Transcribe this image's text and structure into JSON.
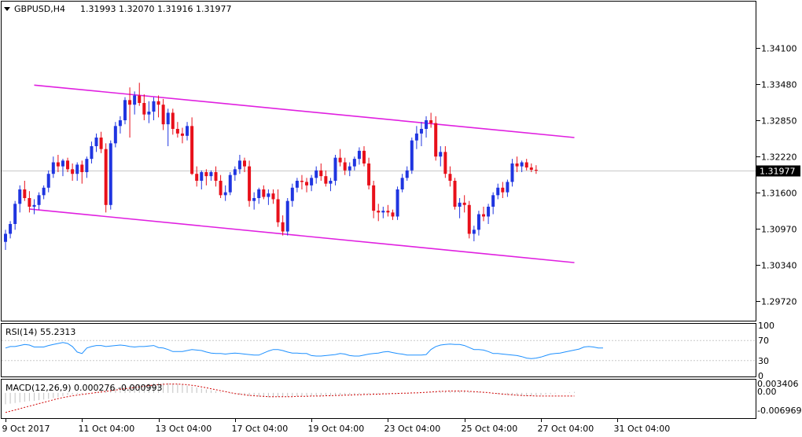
{
  "header": {
    "symbol_label": "GBPUSD,H4",
    "ohlc_label": "1.31993 1.32070 1.31916 1.31977"
  },
  "colors": {
    "bull": "#1f35e0",
    "bear": "#e8101a",
    "channel": "#e020e0",
    "rsi_line": "#1e90ff",
    "macd_hist": "#c0c0c0",
    "macd_signal": "#d00000",
    "grid": "#c8c8c8"
  },
  "chart_data": [
    {
      "type": "candlestick",
      "symbol": "GBPUSD",
      "timeframe": "H4",
      "ylim": [
        1.294,
        1.348
      ],
      "y_ticks": [
        "1.34100",
        "1.33480",
        "1.32850",
        "1.32220",
        "1.31600",
        "1.30970",
        "1.30340",
        "1.29720"
      ],
      "current_price": "1.31977",
      "x_tick_labels": [
        "9 Oct 2017",
        "11 Oct 04:00",
        "13 Oct 04:00",
        "17 Oct 04:00",
        "19 Oct 04:00",
        "23 Oct 04:00",
        "25 Oct 04:00",
        "27 Oct 04:00",
        "31 Oct 04:00"
      ],
      "x_ticks_bar_index": [
        0,
        16,
        32,
        48,
        64,
        80,
        96,
        112,
        128
      ],
      "candles": [
        [
          1.3074,
          1.3095,
          1.306,
          1.3088
        ],
        [
          1.3088,
          1.311,
          1.308,
          1.3105
        ],
        [
          1.3105,
          1.3145,
          1.3095,
          1.314
        ],
        [
          1.314,
          1.3172,
          1.3125,
          1.3165
        ],
        [
          1.3165,
          1.318,
          1.3145,
          1.315
        ],
        [
          1.315,
          1.3162,
          1.3125,
          1.3135
        ],
        [
          1.3135,
          1.3148,
          1.3122,
          1.3138
        ],
        [
          1.3138,
          1.316,
          1.313,
          1.3155
        ],
        [
          1.3155,
          1.3172,
          1.3148,
          1.3168
        ],
        [
          1.3168,
          1.3198,
          1.316,
          1.3192
        ],
        [
          1.3192,
          1.3222,
          1.3185,
          1.3212
        ],
        [
          1.3212,
          1.3225,
          1.3195,
          1.3205
        ],
        [
          1.3205,
          1.3218,
          1.3188,
          1.3215
        ],
        [
          1.3215,
          1.322,
          1.3195,
          1.32
        ],
        [
          1.32,
          1.321,
          1.318,
          1.3192
        ],
        [
          1.3192,
          1.3212,
          1.318,
          1.3208
        ],
        [
          1.3208,
          1.3215,
          1.3175,
          1.3195
        ],
        [
          1.3195,
          1.3222,
          1.3185,
          1.3218
        ],
        [
          1.3218,
          1.3248,
          1.321,
          1.324
        ],
        [
          1.324,
          1.3262,
          1.323,
          1.3255
        ],
        [
          1.3255,
          1.3265,
          1.3228,
          1.3235
        ],
        [
          1.3235,
          1.3245,
          1.3125,
          1.3138
        ],
        [
          1.3138,
          1.325,
          1.313,
          1.3245
        ],
        [
          1.3245,
          1.3282,
          1.3238,
          1.3275
        ],
        [
          1.3275,
          1.3292,
          1.3262,
          1.3285
        ],
        [
          1.3285,
          1.3325,
          1.3278,
          1.332
        ],
        [
          1.332,
          1.3342,
          1.3255,
          1.3312
        ],
        [
          1.3312,
          1.3335,
          1.3295,
          1.3328
        ],
        [
          1.3328,
          1.335,
          1.331,
          1.3315
        ],
        [
          1.3315,
          1.333,
          1.3285,
          1.3295
        ],
        [
          1.3295,
          1.3318,
          1.328,
          1.33
        ],
        [
          1.33,
          1.3325,
          1.3285,
          1.3318
        ],
        [
          1.3318,
          1.3328,
          1.329,
          1.3312
        ],
        [
          1.3312,
          1.3322,
          1.3268,
          1.3278
        ],
        [
          1.3278,
          1.3305,
          1.324,
          1.3298
        ],
        [
          1.3298,
          1.3305,
          1.326,
          1.327
        ],
        [
          1.327,
          1.3282,
          1.3255,
          1.3262
        ],
        [
          1.3262,
          1.3272,
          1.3245,
          1.3258
        ],
        [
          1.3258,
          1.3282,
          1.325,
          1.3275
        ],
        [
          1.3275,
          1.329,
          1.319,
          1.3192
        ],
        [
          1.3192,
          1.3205,
          1.317,
          1.318
        ],
        [
          1.318,
          1.3198,
          1.3165,
          1.3195
        ],
        [
          1.3195,
          1.32,
          1.3172,
          1.3188
        ],
        [
          1.3188,
          1.3198,
          1.318,
          1.3195
        ],
        [
          1.3195,
          1.3205,
          1.317,
          1.318
        ],
        [
          1.318,
          1.319,
          1.315,
          1.3155
        ],
        [
          1.3155,
          1.3172,
          1.3145,
          1.316
        ],
        [
          1.316,
          1.3195,
          1.3155,
          1.319
        ],
        [
          1.319,
          1.3205,
          1.318,
          1.32
        ],
        [
          1.32,
          1.3225,
          1.3192,
          1.3215
        ],
        [
          1.3215,
          1.322,
          1.3195,
          1.3205
        ],
        [
          1.3205,
          1.3215,
          1.3135,
          1.3145
        ],
        [
          1.3145,
          1.316,
          1.313,
          1.315
        ],
        [
          1.315,
          1.3168,
          1.314,
          1.3165
        ],
        [
          1.3165,
          1.3172,
          1.3148,
          1.3152
        ],
        [
          1.3152,
          1.3165,
          1.3138,
          1.3158
        ],
        [
          1.3158,
          1.3165,
          1.314,
          1.3148
        ],
        [
          1.3148,
          1.3165,
          1.31,
          1.3108
        ],
        [
          1.3108,
          1.312,
          1.3085,
          1.3092
        ],
        [
          1.3092,
          1.315,
          1.3085,
          1.3145
        ],
        [
          1.3145,
          1.3175,
          1.3135,
          1.3168
        ],
        [
          1.3168,
          1.3185,
          1.316,
          1.318
        ],
        [
          1.318,
          1.319,
          1.3165,
          1.3178
        ],
        [
          1.3178,
          1.3185,
          1.316,
          1.3172
        ],
        [
          1.3172,
          1.319,
          1.3162,
          1.3185
        ],
        [
          1.3185,
          1.3205,
          1.3175,
          1.3198
        ],
        [
          1.3198,
          1.321,
          1.318,
          1.3188
        ],
        [
          1.3188,
          1.3198,
          1.317,
          1.3175
        ],
        [
          1.3175,
          1.3185,
          1.3162,
          1.318
        ],
        [
          1.318,
          1.3225,
          1.3172,
          1.322
        ],
        [
          1.322,
          1.3235,
          1.3205,
          1.3212
        ],
        [
          1.3212,
          1.322,
          1.319,
          1.3198
        ],
        [
          1.3198,
          1.3212,
          1.3188,
          1.3205
        ],
        [
          1.3205,
          1.3222,
          1.3198,
          1.3218
        ],
        [
          1.3218,
          1.3238,
          1.3208,
          1.3232
        ],
        [
          1.3232,
          1.324,
          1.3205,
          1.321
        ],
        [
          1.321,
          1.322,
          1.3165,
          1.3172
        ],
        [
          1.3172,
          1.318,
          1.3115,
          1.3128
        ],
        [
          1.3128,
          1.314,
          1.311,
          1.3125
        ],
        [
          1.3125,
          1.3135,
          1.3115,
          1.3128
        ],
        [
          1.3128,
          1.3138,
          1.3118,
          1.3125
        ],
        [
          1.3125,
          1.313,
          1.3112,
          1.3118
        ],
        [
          1.3118,
          1.317,
          1.3112,
          1.3165
        ],
        [
          1.3165,
          1.3192,
          1.316,
          1.3185
        ],
        [
          1.3185,
          1.3205,
          1.318,
          1.3198
        ],
        [
          1.3198,
          1.3255,
          1.3192,
          1.325
        ],
        [
          1.325,
          1.3275,
          1.3235,
          1.3262
        ],
        [
          1.3262,
          1.3282,
          1.324,
          1.327
        ],
        [
          1.327,
          1.3292,
          1.3255,
          1.3285
        ],
        [
          1.3285,
          1.3298,
          1.3272,
          1.328
        ],
        [
          1.328,
          1.3292,
          1.3215,
          1.3222
        ],
        [
          1.3222,
          1.324,
          1.3205,
          1.323
        ],
        [
          1.323,
          1.324,
          1.3185,
          1.3192
        ],
        [
          1.3192,
          1.3205,
          1.317,
          1.318
        ],
        [
          1.318,
          1.3185,
          1.313,
          1.3135
        ],
        [
          1.3135,
          1.315,
          1.3115,
          1.3142
        ],
        [
          1.3142,
          1.3155,
          1.3125,
          1.3138
        ],
        [
          1.3138,
          1.3145,
          1.308,
          1.3088
        ],
        [
          1.3088,
          1.3102,
          1.3075,
          1.3095
        ],
        [
          1.3095,
          1.3128,
          1.3085,
          1.3122
        ],
        [
          1.3122,
          1.3135,
          1.311,
          1.3118
        ],
        [
          1.3118,
          1.314,
          1.3105,
          1.3135
        ],
        [
          1.3135,
          1.316,
          1.3122,
          1.3155
        ],
        [
          1.3155,
          1.3175,
          1.3148,
          1.3168
        ],
        [
          1.3168,
          1.3178,
          1.315,
          1.316
        ],
        [
          1.316,
          1.3182,
          1.3152,
          1.3178
        ],
        [
          1.3178,
          1.3218,
          1.317,
          1.321
        ],
        [
          1.321,
          1.3222,
          1.3195,
          1.3205
        ],
        [
          1.3205,
          1.3215,
          1.3195,
          1.3212
        ],
        [
          1.3212,
          1.3218,
          1.3198,
          1.3203
        ],
        [
          1.3203,
          1.321,
          1.3195,
          1.3199
        ],
        [
          1.3199,
          1.3207,
          1.3192,
          1.3198
        ]
      ],
      "channel_lines": [
        {
          "name": "upper",
          "from_bar": 6,
          "to_bar": 119,
          "from_price": 1.3346,
          "to_price": 1.3255
        },
        {
          "name": "lower",
          "from_bar": 5,
          "to_bar": 119,
          "from_price": 1.3131,
          "to_price": 1.3038
        }
      ]
    },
    {
      "type": "line",
      "indicator_label": "RSI(14) 55.2313",
      "ylim": [
        0,
        100
      ],
      "y_ticks": [
        "100",
        "70",
        "30",
        "0"
      ],
      "levels": [
        70,
        30
      ],
      "values": [
        55,
        58,
        58,
        60,
        62,
        61,
        57,
        57,
        57,
        60,
        62,
        64,
        66,
        64,
        58,
        47,
        44,
        55,
        58,
        60,
        60,
        58,
        59,
        60,
        61,
        60,
        58,
        57,
        58,
        58,
        59,
        60,
        56,
        55,
        52,
        48,
        48,
        48,
        50,
        52,
        51,
        50,
        47,
        45,
        44,
        44,
        43,
        44,
        45,
        44,
        43,
        42,
        41,
        41,
        45,
        49,
        52,
        52,
        50,
        47,
        45,
        45,
        44,
        44,
        40,
        39,
        39,
        40,
        41,
        42,
        44,
        43,
        40,
        39,
        39,
        41,
        43,
        44,
        45,
        47,
        48,
        46,
        44,
        43,
        41,
        41,
        41,
        41,
        42,
        52,
        58,
        61,
        62,
        63,
        62,
        62,
        60,
        56,
        52,
        52,
        51,
        48,
        44,
        44,
        43,
        42,
        41,
        40,
        38,
        35,
        34,
        35,
        37,
        40,
        43,
        44,
        45,
        47,
        49,
        51,
        53,
        57,
        58,
        57,
        55,
        55
      ]
    },
    {
      "type": "bar",
      "indicator_label": "MACD(12,26,9) 0.000276 -0.000993",
      "ylim": [
        -0.0075,
        0.0037
      ],
      "y_ticks": [
        "0.003406",
        "0.00",
        "-0.006969"
      ],
      "histogram": [
        -0.0036,
        -0.0034,
        -0.0032,
        -0.003,
        -0.0028,
        -0.0026,
        -0.0025,
        -0.0023,
        -0.0021,
        -0.0019,
        -0.0016,
        -0.0013,
        -0.001,
        -0.0007,
        -0.0005,
        -0.0004,
        -0.0003,
        -0.0002,
        0.0,
        0.0003,
        0.0006,
        0.0009,
        0.0012,
        0.0015,
        0.0018,
        0.002,
        0.0022,
        0.0024,
        0.0026,
        0.0028,
        0.003,
        0.0031,
        0.0032,
        0.0032,
        0.0031,
        0.003,
        0.0028,
        0.0026,
        0.0023,
        0.002,
        0.0017,
        0.0014,
        0.0011,
        0.0008,
        0.0005,
        0.0002,
        0.0,
        -0.0002,
        -0.0004,
        -0.0006,
        -0.0008,
        -0.001,
        -0.0011,
        -0.0012,
        -0.0013,
        -0.0014,
        -0.0014,
        -0.0013,
        -0.0013,
        -0.0012,
        -0.0012,
        -0.0011,
        -0.0011,
        -0.001,
        -0.001,
        -0.001,
        -0.001,
        -0.0009,
        -0.0009,
        -0.0008,
        -0.0008,
        -0.0007,
        -0.0007,
        -0.0006,
        -0.0006,
        -0.0005,
        -0.0005,
        -0.0005,
        -0.0004,
        -0.0004,
        -0.0003,
        -0.0003,
        -0.0003,
        -0.0002,
        -0.0002,
        -0.0002,
        -0.0001,
        0.0,
        0.0001,
        0.0002,
        0.0004,
        0.0005,
        0.0006,
        0.0006,
        0.0007,
        0.0007,
        0.0006,
        0.0005,
        0.0004,
        0.0003,
        0.0002,
        0.0,
        -0.0002,
        -0.0004,
        -0.0006,
        -0.0007,
        -0.0008,
        -0.0009,
        -0.001,
        -0.001,
        -0.0009,
        -0.0008,
        -0.0007,
        -0.0005,
        -0.0004,
        -0.0002,
        0.0,
        0.0001,
        0.0002,
        0.0003
      ],
      "signal": [
        -0.0062,
        -0.0058,
        -0.0054,
        -0.005,
        -0.0046,
        -0.0042,
        -0.0038,
        -0.0034,
        -0.003,
        -0.0026,
        -0.0022,
        -0.0018,
        -0.0015,
        -0.0012,
        -0.0009,
        -0.0007,
        -0.0005,
        -0.0003,
        -0.0001,
        0.0001,
        0.0003,
        0.0005,
        0.0007,
        0.0009,
        0.0011,
        0.0013,
        0.0015,
        0.0017,
        0.0019,
        0.0021,
        0.0023,
        0.0025,
        0.0026,
        0.0027,
        0.0028,
        0.0028,
        0.0028,
        0.0027,
        0.0026,
        0.0024,
        0.0022,
        0.0019,
        0.0016,
        0.0013,
        0.001,
        0.0007,
        0.0004,
        0.0001,
        -0.0002,
        -0.0004,
        -0.0006,
        -0.0008,
        -0.0009,
        -0.001,
        -0.0011,
        -0.0012,
        -0.0012,
        -0.0012,
        -0.0012,
        -0.0012,
        -0.0012,
        -0.0011,
        -0.0011,
        -0.0011,
        -0.001,
        -0.001,
        -0.001,
        -0.0009,
        -0.0009,
        -0.0008,
        -0.0008,
        -0.0007,
        -0.0007,
        -0.0006,
        -0.0006,
        -0.0005,
        -0.0005,
        -0.0004,
        -0.0004,
        -0.0003,
        -0.0003,
        -0.0002,
        -0.0002,
        -0.0001,
        -0.0001,
        0.0,
        0.0,
        0.0001,
        0.0002,
        0.0003,
        0.0004,
        0.0005,
        0.0005,
        0.0006,
        0.0006,
        0.0006,
        0.0006,
        0.0005,
        0.0004,
        0.0003,
        0.0002,
        0.0001,
        -0.0001,
        -0.0002,
        -0.0004,
        -0.0005,
        -0.0006,
        -0.0007,
        -0.0008,
        -0.0009,
        -0.0009,
        -0.001,
        -0.001,
        -0.001,
        -0.001,
        -0.001,
        -0.001,
        -0.001,
        -0.001,
        -0.001
      ]
    }
  ]
}
